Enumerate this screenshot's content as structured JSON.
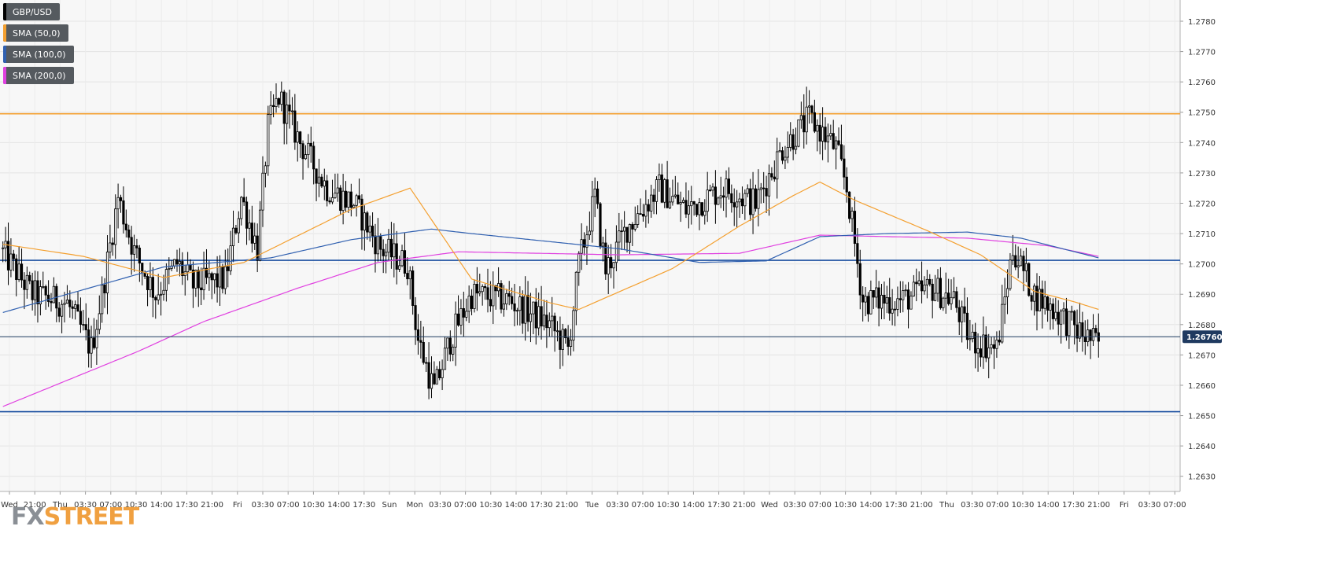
{
  "legend": [
    {
      "label": "GBP/USD",
      "color": "#000000"
    },
    {
      "label": "SMA (50,0)",
      "color": "#f4a030"
    },
    {
      "label": "SMA (100,0)",
      "color": "#3060b0"
    },
    {
      "label": "SMA (200,0)",
      "color": "#e040e0"
    }
  ],
  "watermark": {
    "fx": "FX",
    "street": "STREET",
    "fx_color": "#8a8f95",
    "street_color": "#f0a040"
  },
  "chart_data": {
    "type": "candlestick",
    "pair": "GBP/USD",
    "ylim": [
      1.2625,
      1.2787
    ],
    "y_ticks": [
      "1.2630",
      "1.2640",
      "1.2650",
      "1.2660",
      "1.2670",
      "1.2680",
      "1.2690",
      "1.2700",
      "1.2710",
      "1.2720",
      "1.2730",
      "1.2740",
      "1.2750",
      "1.2760",
      "1.2770",
      "1.2780"
    ],
    "x_ticks": [
      "Wed",
      "21:00",
      "Thu",
      "03:30",
      "07:00",
      "10:30",
      "14:00",
      "17:30",
      "21:00",
      "Fri",
      "03:30",
      "07:00",
      "10:30",
      "14:00",
      "17:30",
      "Sun",
      "Mon",
      "03:30",
      "07:00",
      "10:30",
      "14:00",
      "17:30",
      "21:00",
      "Tue",
      "03:30",
      "07:00",
      "10:30",
      "14:00",
      "17:30",
      "21:00",
      "Wed",
      "03:30",
      "07:00",
      "10:30",
      "14:00",
      "17:30",
      "21:00",
      "Thu",
      "03:30",
      "07:00",
      "10:30",
      "14:00",
      "17:30",
      "21:00",
      "Fri",
      "03:30",
      "07:00"
    ],
    "grid": true,
    "current_price": {
      "value": 1.2676,
      "label": "1.26760"
    },
    "horizontal_lines": [
      {
        "value": 1.27495,
        "color": "#f4a030"
      },
      {
        "value": 1.27012,
        "color": "#1a4fa0"
      },
      {
        "value": 1.26513,
        "color": "#1a4fa0"
      }
    ],
    "price_path_anchors": [
      [
        0,
        1.2705
      ],
      [
        12,
        1.269
      ],
      [
        25,
        1.2687
      ],
      [
        34,
        1.2672
      ],
      [
        38,
        1.269
      ],
      [
        44,
        1.2722
      ],
      [
        50,
        1.2704
      ],
      [
        58,
        1.269
      ],
      [
        66,
        1.27
      ],
      [
        72,
        1.2693
      ],
      [
        84,
        1.2695
      ],
      [
        90,
        1.2722
      ],
      [
        96,
        1.2705
      ],
      [
        100,
        1.2745
      ],
      [
        104,
        1.2755
      ],
      [
        112,
        1.274
      ],
      [
        122,
        1.2725
      ],
      [
        132,
        1.272
      ],
      [
        142,
        1.2705
      ],
      [
        152,
        1.27
      ],
      [
        156,
        1.2675
      ],
      [
        162,
        1.2658
      ],
      [
        168,
        1.2675
      ],
      [
        176,
        1.269
      ],
      [
        190,
        1.2688
      ],
      [
        205,
        1.268
      ],
      [
        212,
        1.2672
      ],
      [
        216,
        1.27
      ],
      [
        222,
        1.2722
      ],
      [
        226,
        1.2698
      ],
      [
        234,
        1.2712
      ],
      [
        246,
        1.2725
      ],
      [
        256,
        1.2718
      ],
      [
        270,
        1.2725
      ],
      [
        282,
        1.272
      ],
      [
        292,
        1.2738
      ],
      [
        302,
        1.2748
      ],
      [
        312,
        1.2738
      ],
      [
        316,
        1.2725
      ],
      [
        322,
        1.2688
      ],
      [
        336,
        1.2688
      ],
      [
        348,
        1.2692
      ],
      [
        356,
        1.2688
      ],
      [
        362,
        1.2675
      ],
      [
        372,
        1.2672
      ],
      [
        378,
        1.2705
      ],
      [
        386,
        1.269
      ],
      [
        396,
        1.2683
      ],
      [
        402,
        1.2678
      ],
      [
        409,
        1.2674
      ]
    ],
    "sma_50": [
      [
        0,
        1.27065
      ],
      [
        30,
        1.27025
      ],
      [
        60,
        1.26955
      ],
      [
        90,
        1.27005
      ],
      [
        130,
        1.2718
      ],
      [
        152,
        1.2725
      ],
      [
        175,
        1.2695
      ],
      [
        205,
        1.2687
      ],
      [
        215,
        1.2685
      ],
      [
        250,
        1.26985
      ],
      [
        275,
        1.27125
      ],
      [
        295,
        1.27225
      ],
      [
        305,
        1.2727
      ],
      [
        318,
        1.2721
      ],
      [
        345,
        1.2711
      ],
      [
        365,
        1.2703
      ],
      [
        385,
        1.2691
      ],
      [
        400,
        1.26875
      ],
      [
        409,
        1.2685
      ]
    ],
    "sma_100": [
      [
        0,
        1.2684
      ],
      [
        60,
        1.2699
      ],
      [
        100,
        1.2702
      ],
      [
        130,
        1.2708
      ],
      [
        160,
        1.27115
      ],
      [
        175,
        1.271
      ],
      [
        230,
        1.2705
      ],
      [
        260,
        1.27005
      ],
      [
        285,
        1.2701
      ],
      [
        305,
        1.2709
      ],
      [
        330,
        1.271
      ],
      [
        360,
        1.27105
      ],
      [
        380,
        1.27085
      ],
      [
        409,
        1.2702
      ]
    ],
    "sma_200": [
      [
        0,
        1.2653
      ],
      [
        50,
        1.2671
      ],
      [
        75,
        1.2681
      ],
      [
        110,
        1.2692
      ],
      [
        140,
        1.27005
      ],
      [
        170,
        1.2704
      ],
      [
        230,
        1.2703
      ],
      [
        275,
        1.27035
      ],
      [
        305,
        1.27095
      ],
      [
        330,
        1.2709
      ],
      [
        360,
        1.27085
      ],
      [
        390,
        1.2706
      ],
      [
        409,
        1.27025
      ]
    ]
  }
}
